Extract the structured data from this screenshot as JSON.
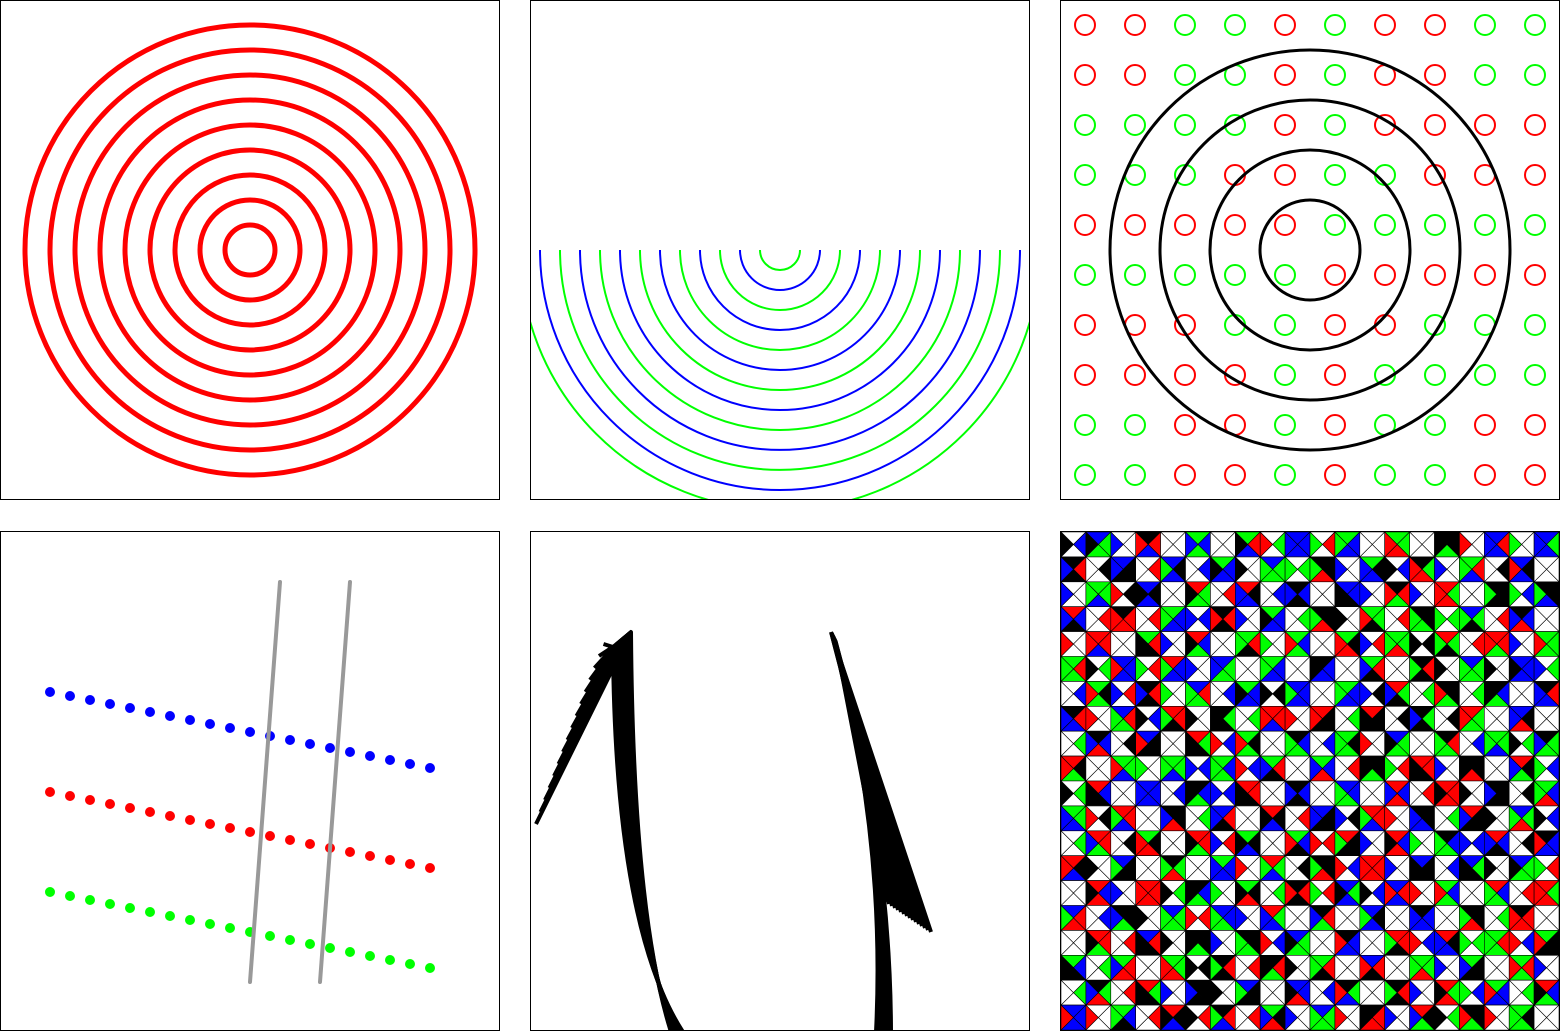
{
  "colors": {
    "red": "#ff0000",
    "green": "#00ff00",
    "blue": "#0000ff",
    "black": "#000000",
    "gray": "#999999",
    "white": "#ffffff",
    "border": "#000000"
  },
  "panels": [
    {
      "id": "concentric-circles",
      "ring_count": 9,
      "colors": [
        "red"
      ]
    },
    {
      "id": "alternating-semicircles",
      "arc_count": 13,
      "colors": [
        "green",
        "blue"
      ]
    },
    {
      "id": "grid-of-small-circles",
      "grid": [
        10,
        10
      ],
      "small_colors": [
        "red",
        "green"
      ],
      "large_ring_count": 4,
      "large_ring_color": "black"
    },
    {
      "id": "dotted-rows-with-crossing-lines",
      "row_colors": [
        "blue",
        "red",
        "green"
      ],
      "dots_per_row": 20,
      "line_count": 2,
      "line_color": "gray"
    },
    {
      "id": "line-fans",
      "fan_count": 2,
      "lines_per_fan": 16,
      "color": "black"
    },
    {
      "id": "triangle-tile-pattern",
      "grid": [
        20,
        20
      ],
      "tile_colors": [
        "red",
        "green",
        "blue",
        "black",
        "white"
      ]
    }
  ]
}
